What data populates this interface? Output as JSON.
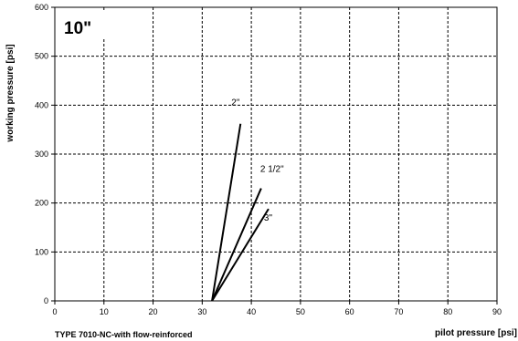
{
  "chart_data": {
    "type": "line",
    "title": "",
    "inset_label": "10\"",
    "xlabel": "pilot pressure [psi]",
    "ylabel": "working pressure [psi]",
    "footer": "TYPE 7010-NC-with flow-reinforced",
    "xlim": [
      0,
      90
    ],
    "ylim": [
      0,
      600
    ],
    "xticks": [
      0,
      10,
      20,
      30,
      40,
      50,
      60,
      70,
      80,
      90
    ],
    "yticks": [
      0,
      100,
      200,
      300,
      400,
      500,
      600
    ],
    "grid": true,
    "series": [
      {
        "name": "2\"",
        "x": [
          32,
          37.8
        ],
        "y": [
          0,
          362
        ]
      },
      {
        "name": "2 1/2\"",
        "x": [
          32,
          42
        ],
        "y": [
          0,
          230
        ]
      },
      {
        "name": "3\"",
        "x": [
          32,
          43.5
        ],
        "y": [
          0,
          188
        ]
      }
    ]
  }
}
